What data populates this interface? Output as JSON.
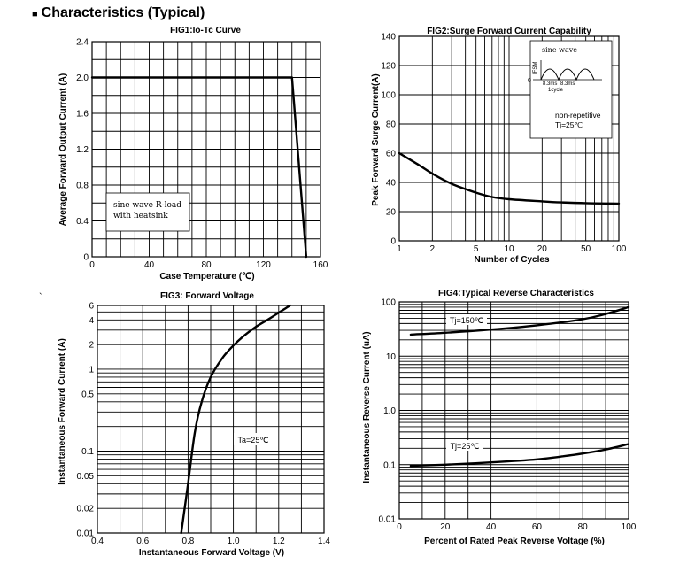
{
  "page": {
    "title": "Characteristics (Typical)",
    "stray_mark": "`"
  },
  "chart_data": [
    {
      "id": "fig1",
      "type": "line",
      "title": "FIG1:Io-Tc Curve",
      "xlabel": "Case Temperature (℃)",
      "ylabel": "Average Forward Output Current (A)",
      "xlim": [
        0,
        160
      ],
      "ylim": [
        0,
        2.4
      ],
      "xscale": "linear",
      "yscale": "linear",
      "x_ticks": [
        0,
        40,
        80,
        120,
        160
      ],
      "y_ticks": [
        0,
        0.4,
        0.8,
        1.2,
        1.6,
        2.0,
        2.4
      ],
      "x_tick_labels": [
        "0",
        "40",
        "80",
        "120",
        "160"
      ],
      "y_tick_labels": [
        "0",
        "0.4",
        "0.8",
        "1.2",
        "1.6",
        "2.0",
        "2.4"
      ],
      "x_grid": [
        0,
        10,
        20,
        30,
        40,
        50,
        60,
        70,
        80,
        90,
        100,
        110,
        120,
        130,
        140,
        150,
        160
      ],
      "y_grid": [
        0,
        0.2,
        0.4,
        0.6,
        0.8,
        1.0,
        1.2,
        1.4,
        1.6,
        1.8,
        2.0,
        2.2,
        2.4
      ],
      "series": [
        {
          "name": "Io",
          "x": [
            0,
            140,
            150
          ],
          "y": [
            2.0,
            2.0,
            0
          ]
        }
      ],
      "annotations": [
        {
          "text": "sine wave R-load",
          "text2": "with heatsink"
        }
      ]
    },
    {
      "id": "fig2",
      "type": "line",
      "title": "FIG2:Surge Forward Current Capability",
      "xlabel": "Number of Cycles",
      "ylabel": "Peak Forward Surge Current(A)",
      "xlim": [
        1,
        100
      ],
      "ylim": [
        0,
        140
      ],
      "xscale": "log",
      "yscale": "linear",
      "x_ticks": [
        1,
        2,
        5,
        10,
        20,
        50,
        100
      ],
      "y_ticks": [
        0,
        20,
        40,
        60,
        80,
        100,
        120,
        140
      ],
      "x_tick_labels": [
        "1",
        "2",
        "5",
        "10",
        "20",
        "50",
        "100"
      ],
      "y_tick_labels": [
        "0",
        "20",
        "40",
        "60",
        "80",
        "100",
        "120",
        "140"
      ],
      "x_grid": [
        1,
        2,
        3,
        4,
        5,
        6,
        7,
        8,
        9,
        10,
        20,
        30,
        40,
        50,
        60,
        70,
        80,
        90,
        100
      ],
      "y_grid": [
        0,
        20,
        40,
        60,
        80,
        100,
        120,
        140
      ],
      "series": [
        {
          "name": "IFSM",
          "x": [
            1,
            1.5,
            2,
            3,
            5,
            7,
            10,
            20,
            30,
            50,
            100
          ],
          "y": [
            60,
            52,
            46,
            39,
            33,
            30,
            28.5,
            27,
            26.3,
            25.8,
            25.5
          ]
        }
      ],
      "inset": {
        "title": "sine wave",
        "ifsm_label": "IFSM",
        "zero_label": "0",
        "t1": "8.3ms",
        "t2": "8.3ms",
        "cycle_label": "1cycle"
      },
      "annotations": [
        {
          "text": "non-repetitive",
          "text2": "Tj=25℃"
        }
      ]
    },
    {
      "id": "fig3",
      "type": "line",
      "title": "FIG3: Forward Voltage",
      "xlabel": "Instantaneous Forward Voltage (V)",
      "ylabel": "Instantaneous Forward Current (A)",
      "xlim": [
        0.4,
        1.4
      ],
      "ylim": [
        0.01,
        6
      ],
      "xscale": "linear",
      "yscale": "log",
      "x_ticks": [
        0.4,
        0.6,
        0.8,
        1.0,
        1.2,
        1.4
      ],
      "y_ticks": [
        0.01,
        0.02,
        0.05,
        0.1,
        0.5,
        1,
        2,
        4,
        6
      ],
      "x_tick_labels": [
        "0.4",
        "0.6",
        "0.8",
        "1.0",
        "1.2",
        "1.4"
      ],
      "y_tick_labels": [
        "0.01",
        "0.02",
        "0.05",
        "0.1",
        "0.5",
        "1",
        "2",
        "4",
        "6"
      ],
      "x_grid": [
        0.4,
        0.5,
        0.6,
        0.7,
        0.8,
        0.9,
        1.0,
        1.1,
        1.2,
        1.3,
        1.4
      ],
      "y_grid": [
        0.01,
        0.02,
        0.03,
        0.04,
        0.05,
        0.06,
        0.07,
        0.08,
        0.09,
        0.1,
        0.2,
        0.3,
        0.4,
        0.5,
        0.6,
        0.7,
        0.8,
        0.9,
        1,
        2,
        3,
        4,
        5,
        6
      ],
      "series": [
        {
          "name": "IF",
          "x": [
            0.77,
            0.8,
            0.83,
            0.86,
            0.9,
            0.95,
            1.0,
            1.05,
            1.1,
            1.15,
            1.2,
            1.25
          ],
          "y": [
            0.01,
            0.04,
            0.17,
            0.4,
            0.8,
            1.35,
            1.95,
            2.6,
            3.3,
            4.0,
            4.9,
            6.0
          ]
        }
      ],
      "annotations": [
        {
          "text": "Ta=25℃"
        }
      ]
    },
    {
      "id": "fig4",
      "type": "line",
      "title": "FIG4:Typical Reverse Characteristics",
      "xlabel": "Percent of Rated Peak Reverse Voltage  (%)",
      "ylabel": "Instantaneous Reverse Current (uA)",
      "xlim": [
        0,
        100
      ],
      "ylim": [
        0.01,
        100
      ],
      "xscale": "linear",
      "yscale": "log",
      "x_ticks": [
        0,
        20,
        40,
        60,
        80,
        100
      ],
      "y_ticks": [
        0.01,
        0.1,
        1,
        10,
        100
      ],
      "x_tick_labels": [
        "0",
        "20",
        "40",
        "60",
        "80",
        "100"
      ],
      "y_tick_labels": [
        "0.01",
        "0.1",
        "1.0",
        "10",
        "100"
      ],
      "x_grid": [
        0,
        10,
        20,
        30,
        40,
        50,
        60,
        70,
        80,
        90,
        100
      ],
      "y_grid": [
        0.01,
        0.02,
        0.03,
        0.04,
        0.05,
        0.06,
        0.07,
        0.08,
        0.09,
        0.1,
        0.2,
        0.3,
        0.4,
        0.5,
        0.6,
        0.7,
        0.8,
        0.9,
        1,
        2,
        3,
        4,
        5,
        6,
        7,
        8,
        9,
        10,
        20,
        30,
        40,
        50,
        60,
        70,
        80,
        90,
        100
      ],
      "series": [
        {
          "name": "Tj=150℃",
          "x": [
            5,
            20,
            40,
            60,
            80,
            90,
            100
          ],
          "y": [
            25,
            27,
            31,
            37,
            48,
            60,
            80
          ]
        },
        {
          "name": "Tj=25℃",
          "x": [
            5,
            20,
            40,
            60,
            70,
            80,
            90,
            100
          ],
          "y": [
            0.095,
            0.1,
            0.11,
            0.125,
            0.14,
            0.16,
            0.19,
            0.24
          ]
        }
      ],
      "annotations": [
        {
          "text": "Tj=150℃"
        },
        {
          "text": "Tj=25℃"
        }
      ]
    }
  ]
}
